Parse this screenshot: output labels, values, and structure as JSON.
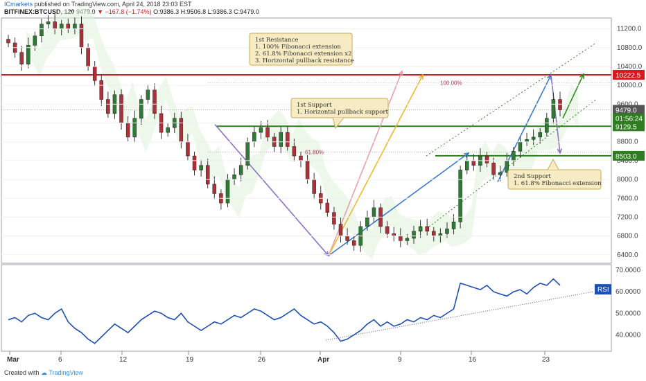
{
  "header": {
    "publisher": "ICmarkets",
    "published_text": "published on TradingView.com, April 24, 2018 23:03 EST",
    "symbol": "BITFINEX:BTCUSD, 120",
    "last": "9479.0",
    "change": "−167.8 (−1.74%)",
    "ohlc": "O:9386.3 H:9506.8 L:9386.3 C:9479.0"
  },
  "footer": {
    "created_with": "Created with",
    "brand": "TradingView"
  },
  "colors": {
    "up": "#2f7b36",
    "down": "#b0303a",
    "resistance": "#d6191c",
    "support": "#2e7d1e",
    "rsi": "#1c4fb5",
    "ichimoku_up": "#dff0d8",
    "ichimoku_down": "#f8e4e4",
    "callout_bg": "#f6ebc2"
  },
  "chart_data": {
    "type": "candlestick",
    "x_ticks": [
      "Mar",
      "6",
      "12",
      "19",
      "26",
      "Apr",
      "9",
      "16",
      "23"
    ],
    "price_axis": {
      "ylim": [
        6250,
        11400
      ],
      "ticks": [
        6400,
        6800,
        7200,
        7600,
        8000,
        8400,
        8800,
        9200,
        9600,
        10000,
        10400,
        10800,
        11200
      ]
    },
    "price_labels": [
      {
        "text": "10222.5",
        "value": 10222.5,
        "color": "#d6191c"
      },
      {
        "text": "9479.0",
        "value": 9479,
        "color": "#555555"
      },
      {
        "text": "01:56:24",
        "value": 9300,
        "color": "#2e7d1e"
      },
      {
        "text": "9129.5",
        "value": 9129.5,
        "color": "#2e7d1e"
      },
      {
        "text": "8503.0",
        "value": 8503,
        "color": "#2e7d1e"
      }
    ],
    "levels": {
      "resistance": 10222.5,
      "support1": 9129.5,
      "support2": 8503.0
    },
    "fib_labels": [
      "100.00%",
      "61.80%"
    ],
    "closes": [
      10900,
      10700,
      10450,
      10850,
      11050,
      11300,
      11350,
      11200,
      11300,
      11200,
      11300,
      10800,
      10400,
      10100,
      9700,
      9400,
      9800,
      9200,
      8900,
      9300,
      9700,
      9900,
      9400,
      9000,
      9100,
      9300,
      8800,
      8500,
      8200,
      8300,
      7900,
      7700,
      7500,
      8000,
      8100,
      8300,
      8800,
      9000,
      9100,
      8900,
      8700,
      9000,
      8700,
      8500,
      8400,
      8000,
      7700,
      7500,
      7300,
      7050,
      6800,
      6700,
      6600,
      7000,
      7200,
      7400,
      7000,
      6850,
      6800,
      6700,
      6750,
      6900,
      7000,
      6900,
      6800,
      6850,
      6950,
      7100,
      8200,
      8400,
      8300,
      8500,
      8350,
      8100,
      8150,
      8400,
      8600,
      8800,
      8850,
      8900,
      9000,
      9300,
      9700,
      9479
    ],
    "rsi": {
      "ylim": [
        33,
        72
      ],
      "ticks": [
        "70.0000",
        "60.0000",
        "50.0000",
        "40.0000"
      ],
      "tick_values": [
        70,
        60,
        50,
        40
      ],
      "label": "RSI",
      "values": [
        47,
        48,
        46,
        49,
        50,
        48,
        47,
        50,
        52,
        46,
        43,
        41,
        38,
        36,
        39,
        42,
        45,
        43,
        41,
        44,
        47,
        49,
        51,
        50,
        48,
        47,
        50,
        46,
        44,
        42,
        44,
        46,
        45,
        47,
        49,
        48,
        50,
        52,
        51,
        49,
        47,
        48,
        50,
        52,
        49,
        47,
        45,
        46,
        44,
        41,
        37,
        38,
        40,
        42,
        45,
        47,
        44,
        46,
        44,
        45,
        47,
        46,
        48,
        47,
        49,
        48,
        50,
        52,
        64,
        63,
        62,
        61,
        63,
        60,
        59,
        58,
        60,
        61,
        59,
        62,
        64,
        63,
        66,
        63
      ]
    }
  },
  "annotations": [
    {
      "id": "resistance",
      "lines": [
        "1st Resistance",
        "1. 100% Fibonacci extension",
        "2. 61.8% Fibonacci extension x2",
        "3. Horizontal pullback resistance"
      ]
    },
    {
      "id": "support1",
      "lines": [
        "1st Support",
        "1. Horizontal pullback support"
      ]
    },
    {
      "id": "support2",
      "lines": [
        "2nd Support",
        "1. 61.8% Fibonacci extension"
      ]
    }
  ]
}
